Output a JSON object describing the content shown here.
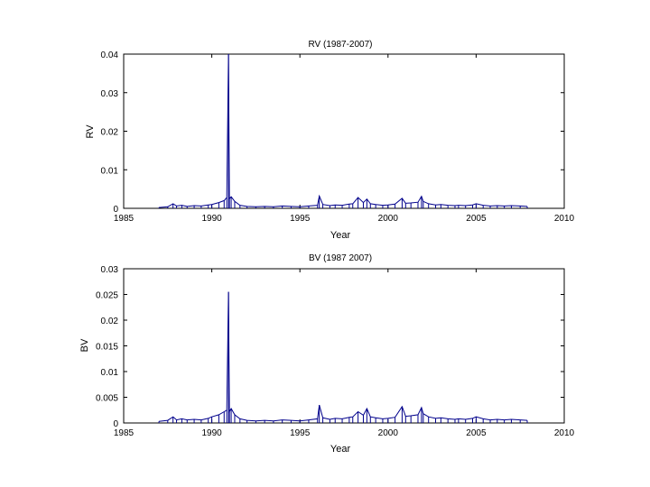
{
  "chart_data": [
    {
      "type": "line",
      "title": "RV (1987-2007)",
      "xlabel": "Year",
      "ylabel": "RV",
      "xlim": [
        1985,
        2010
      ],
      "ylim": [
        0,
        0.04
      ],
      "xticks": [
        1985,
        1990,
        1995,
        2000,
        2005,
        2010
      ],
      "yticks": [
        0,
        0.01,
        0.02,
        0.03,
        0.04
      ],
      "ytick_labels": [
        "0",
        "0.01",
        "0.02",
        "0.03",
        "0.04"
      ],
      "grid": false,
      "color": "#00008b",
      "series": [
        {
          "name": "RV",
          "x": [
            1987.0,
            1987.5,
            1987.8,
            1988.0,
            1988.3,
            1988.6,
            1989.0,
            1989.4,
            1989.8,
            1990.0,
            1990.4,
            1990.7,
            1990.85,
            1990.95,
            1991.0,
            1991.1,
            1991.3,
            1991.6,
            1992.0,
            1992.5,
            1993.0,
            1993.5,
            1994.0,
            1994.5,
            1995.0,
            1995.5,
            1996.0,
            1996.1,
            1996.3,
            1996.7,
            1997.0,
            1997.4,
            1997.8,
            1998.0,
            1998.3,
            1998.6,
            1998.8,
            1999.0,
            1999.3,
            1999.7,
            2000.0,
            2000.4,
            2000.8,
            2001.0,
            2001.3,
            2001.7,
            2001.9,
            2002.0,
            2002.3,
            2002.7,
            2003.0,
            2003.4,
            2003.8,
            2004.0,
            2004.4,
            2004.8,
            2005.0,
            2005.4,
            2005.8,
            2006.2,
            2006.6,
            2007.0,
            2007.5,
            2007.9
          ],
          "values": [
            0.0002,
            0.0004,
            0.0012,
            0.0006,
            0.0008,
            0.0005,
            0.0007,
            0.0006,
            0.0009,
            0.001,
            0.0015,
            0.002,
            0.0028,
            0.04,
            0.0025,
            0.003,
            0.0018,
            0.0008,
            0.0005,
            0.0004,
            0.0005,
            0.0004,
            0.0006,
            0.0005,
            0.0004,
            0.0006,
            0.0008,
            0.0032,
            0.001,
            0.0007,
            0.0009,
            0.0008,
            0.0011,
            0.0012,
            0.0028,
            0.0015,
            0.0024,
            0.0012,
            0.001,
            0.0008,
            0.0009,
            0.0011,
            0.0026,
            0.0013,
            0.0014,
            0.0016,
            0.0031,
            0.0018,
            0.0012,
            0.0009,
            0.001,
            0.0008,
            0.0007,
            0.0008,
            0.0007,
            0.0009,
            0.0012,
            0.0008,
            0.0006,
            0.0007,
            0.0006,
            0.0007,
            0.0006,
            0.0005
          ]
        }
      ]
    },
    {
      "type": "line",
      "title": "BV (1987 2007)",
      "xlabel": "Year",
      "ylabel": "BV",
      "xlim": [
        1985,
        2010
      ],
      "ylim": [
        0,
        0.03
      ],
      "xticks": [
        1985,
        1990,
        1995,
        2000,
        2005,
        2010
      ],
      "yticks": [
        0,
        0.005,
        0.01,
        0.015,
        0.02,
        0.025,
        0.03
      ],
      "ytick_labels": [
        "0",
        "0.005",
        "0.01",
        "0.015",
        "0.02",
        "0.025",
        "0.03"
      ],
      "grid": false,
      "color": "#00008b",
      "series": [
        {
          "name": "BV",
          "x": [
            1987.0,
            1987.5,
            1987.8,
            1988.0,
            1988.3,
            1988.6,
            1989.0,
            1989.4,
            1989.8,
            1990.0,
            1990.4,
            1990.7,
            1990.85,
            1990.95,
            1991.0,
            1991.1,
            1991.3,
            1991.6,
            1992.0,
            1992.5,
            1993.0,
            1993.5,
            1994.0,
            1994.5,
            1995.0,
            1995.5,
            1996.0,
            1996.1,
            1996.3,
            1996.7,
            1997.0,
            1997.4,
            1997.8,
            1998.0,
            1998.3,
            1998.6,
            1998.8,
            1999.0,
            1999.3,
            1999.7,
            2000.0,
            2000.4,
            2000.8,
            2001.0,
            2001.3,
            2001.7,
            2001.9,
            2002.0,
            2002.3,
            2002.7,
            2003.0,
            2003.4,
            2003.8,
            2004.0,
            2004.4,
            2004.8,
            2005.0,
            2005.4,
            2005.8,
            2006.2,
            2006.6,
            2007.0,
            2007.5,
            2007.9
          ],
          "values": [
            0.0003,
            0.0005,
            0.0012,
            0.0006,
            0.0008,
            0.0006,
            0.0007,
            0.0006,
            0.0009,
            0.0012,
            0.0016,
            0.0022,
            0.0025,
            0.0255,
            0.0022,
            0.0028,
            0.0016,
            0.0008,
            0.0005,
            0.0004,
            0.0005,
            0.0004,
            0.0006,
            0.0005,
            0.0004,
            0.0006,
            0.0008,
            0.0035,
            0.001,
            0.0007,
            0.0009,
            0.0008,
            0.0011,
            0.0012,
            0.0022,
            0.0015,
            0.0028,
            0.0012,
            0.001,
            0.0008,
            0.0009,
            0.0011,
            0.0032,
            0.0013,
            0.0014,
            0.0016,
            0.003,
            0.0018,
            0.0012,
            0.0009,
            0.001,
            0.0008,
            0.0007,
            0.0008,
            0.0007,
            0.0009,
            0.0012,
            0.0008,
            0.0006,
            0.0007,
            0.0006,
            0.0007,
            0.0006,
            0.0005
          ]
        }
      ]
    }
  ]
}
